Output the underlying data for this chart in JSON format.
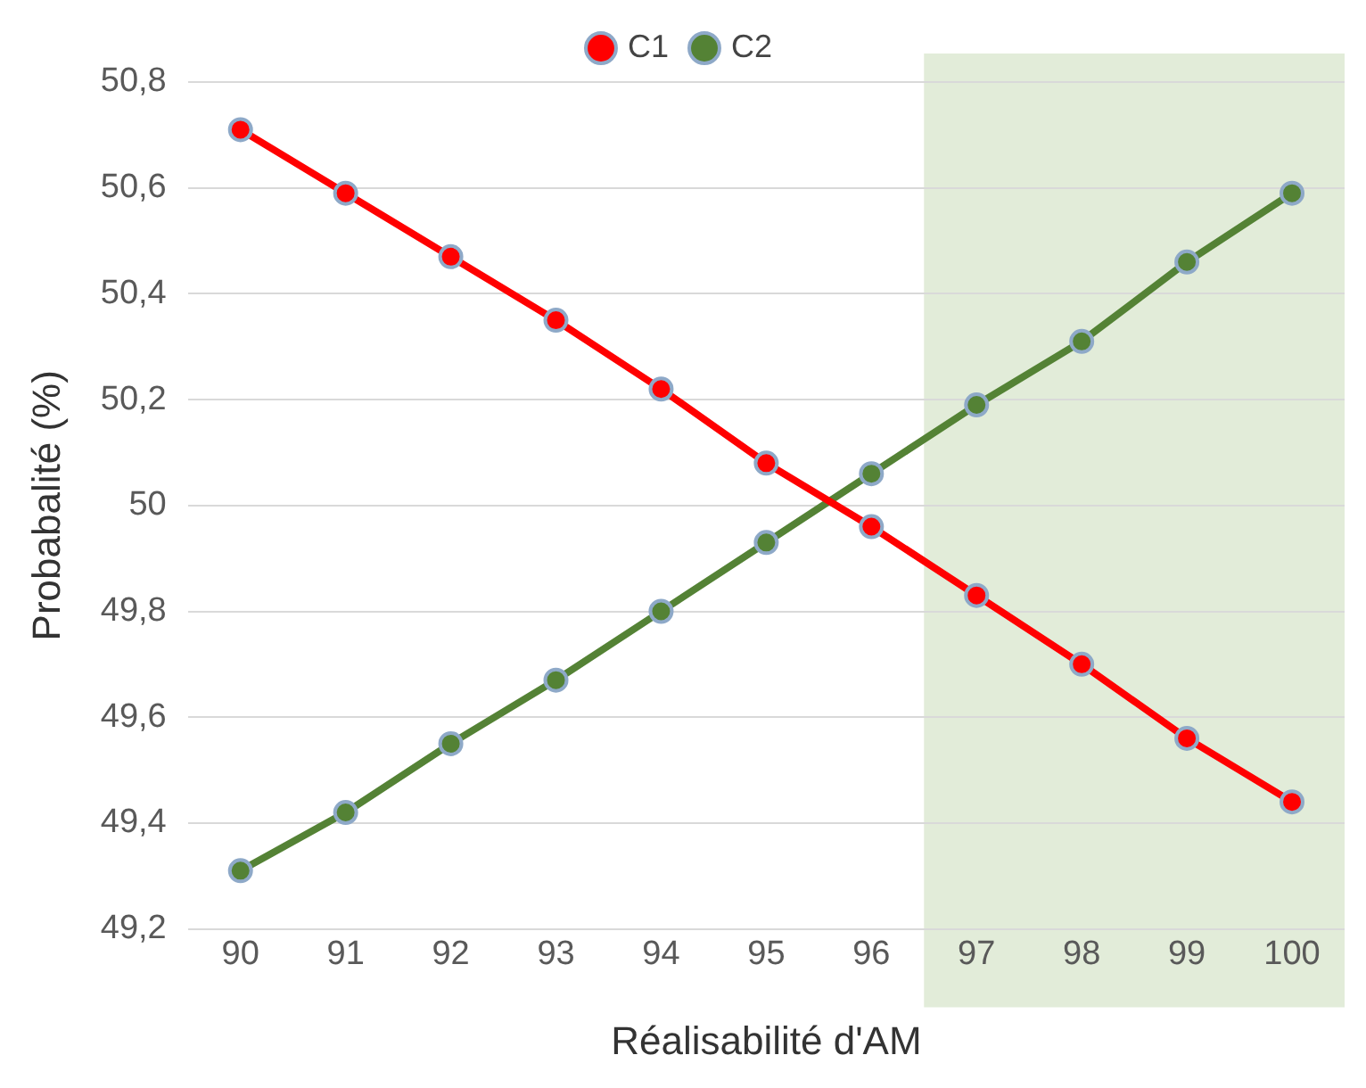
{
  "chart_data": {
    "type": "line",
    "xlabel": "Réalisabilité d'AM",
    "ylabel": "Probabalité (%)",
    "x": [
      90,
      91,
      92,
      93,
      94,
      95,
      96,
      97,
      98,
      99,
      100
    ],
    "xlim": [
      89.5,
      100.5
    ],
    "xticks": [
      90,
      91,
      92,
      93,
      94,
      95,
      96,
      97,
      98,
      99,
      100
    ],
    "ylim": [
      49.2,
      50.8
    ],
    "yticks": [
      {
        "value": 49.2,
        "label": "49,2"
      },
      {
        "value": 49.4,
        "label": "49,4"
      },
      {
        "value": 49.6,
        "label": "49,6"
      },
      {
        "value": 49.8,
        "label": "49,8"
      },
      50,
      {
        "value": 50.2,
        "label": "50,2"
      },
      {
        "value": 50.4,
        "label": "50,4"
      },
      {
        "value": 50.6,
        "label": "50,6"
      },
      {
        "value": 50.8,
        "label": "50,8"
      }
    ],
    "series": [
      {
        "name": "C1",
        "color": "#ff0000",
        "values": [
          50.71,
          50.59,
          50.47,
          50.35,
          50.22,
          50.08,
          49.96,
          49.83,
          49.7,
          49.56,
          49.44
        ]
      },
      {
        "name": "C2",
        "color": "#548235",
        "values": [
          49.31,
          49.42,
          49.55,
          49.67,
          49.8,
          49.93,
          50.06,
          50.19,
          50.31,
          50.46,
          50.59
        ]
      }
    ],
    "bands": [
      {
        "axis": "x",
        "from": 96.5,
        "to": 100.5,
        "color": "#e2ecd9"
      }
    ],
    "grid": "y",
    "legend": "top",
    "marker": "circle",
    "line_style": "solid"
  }
}
